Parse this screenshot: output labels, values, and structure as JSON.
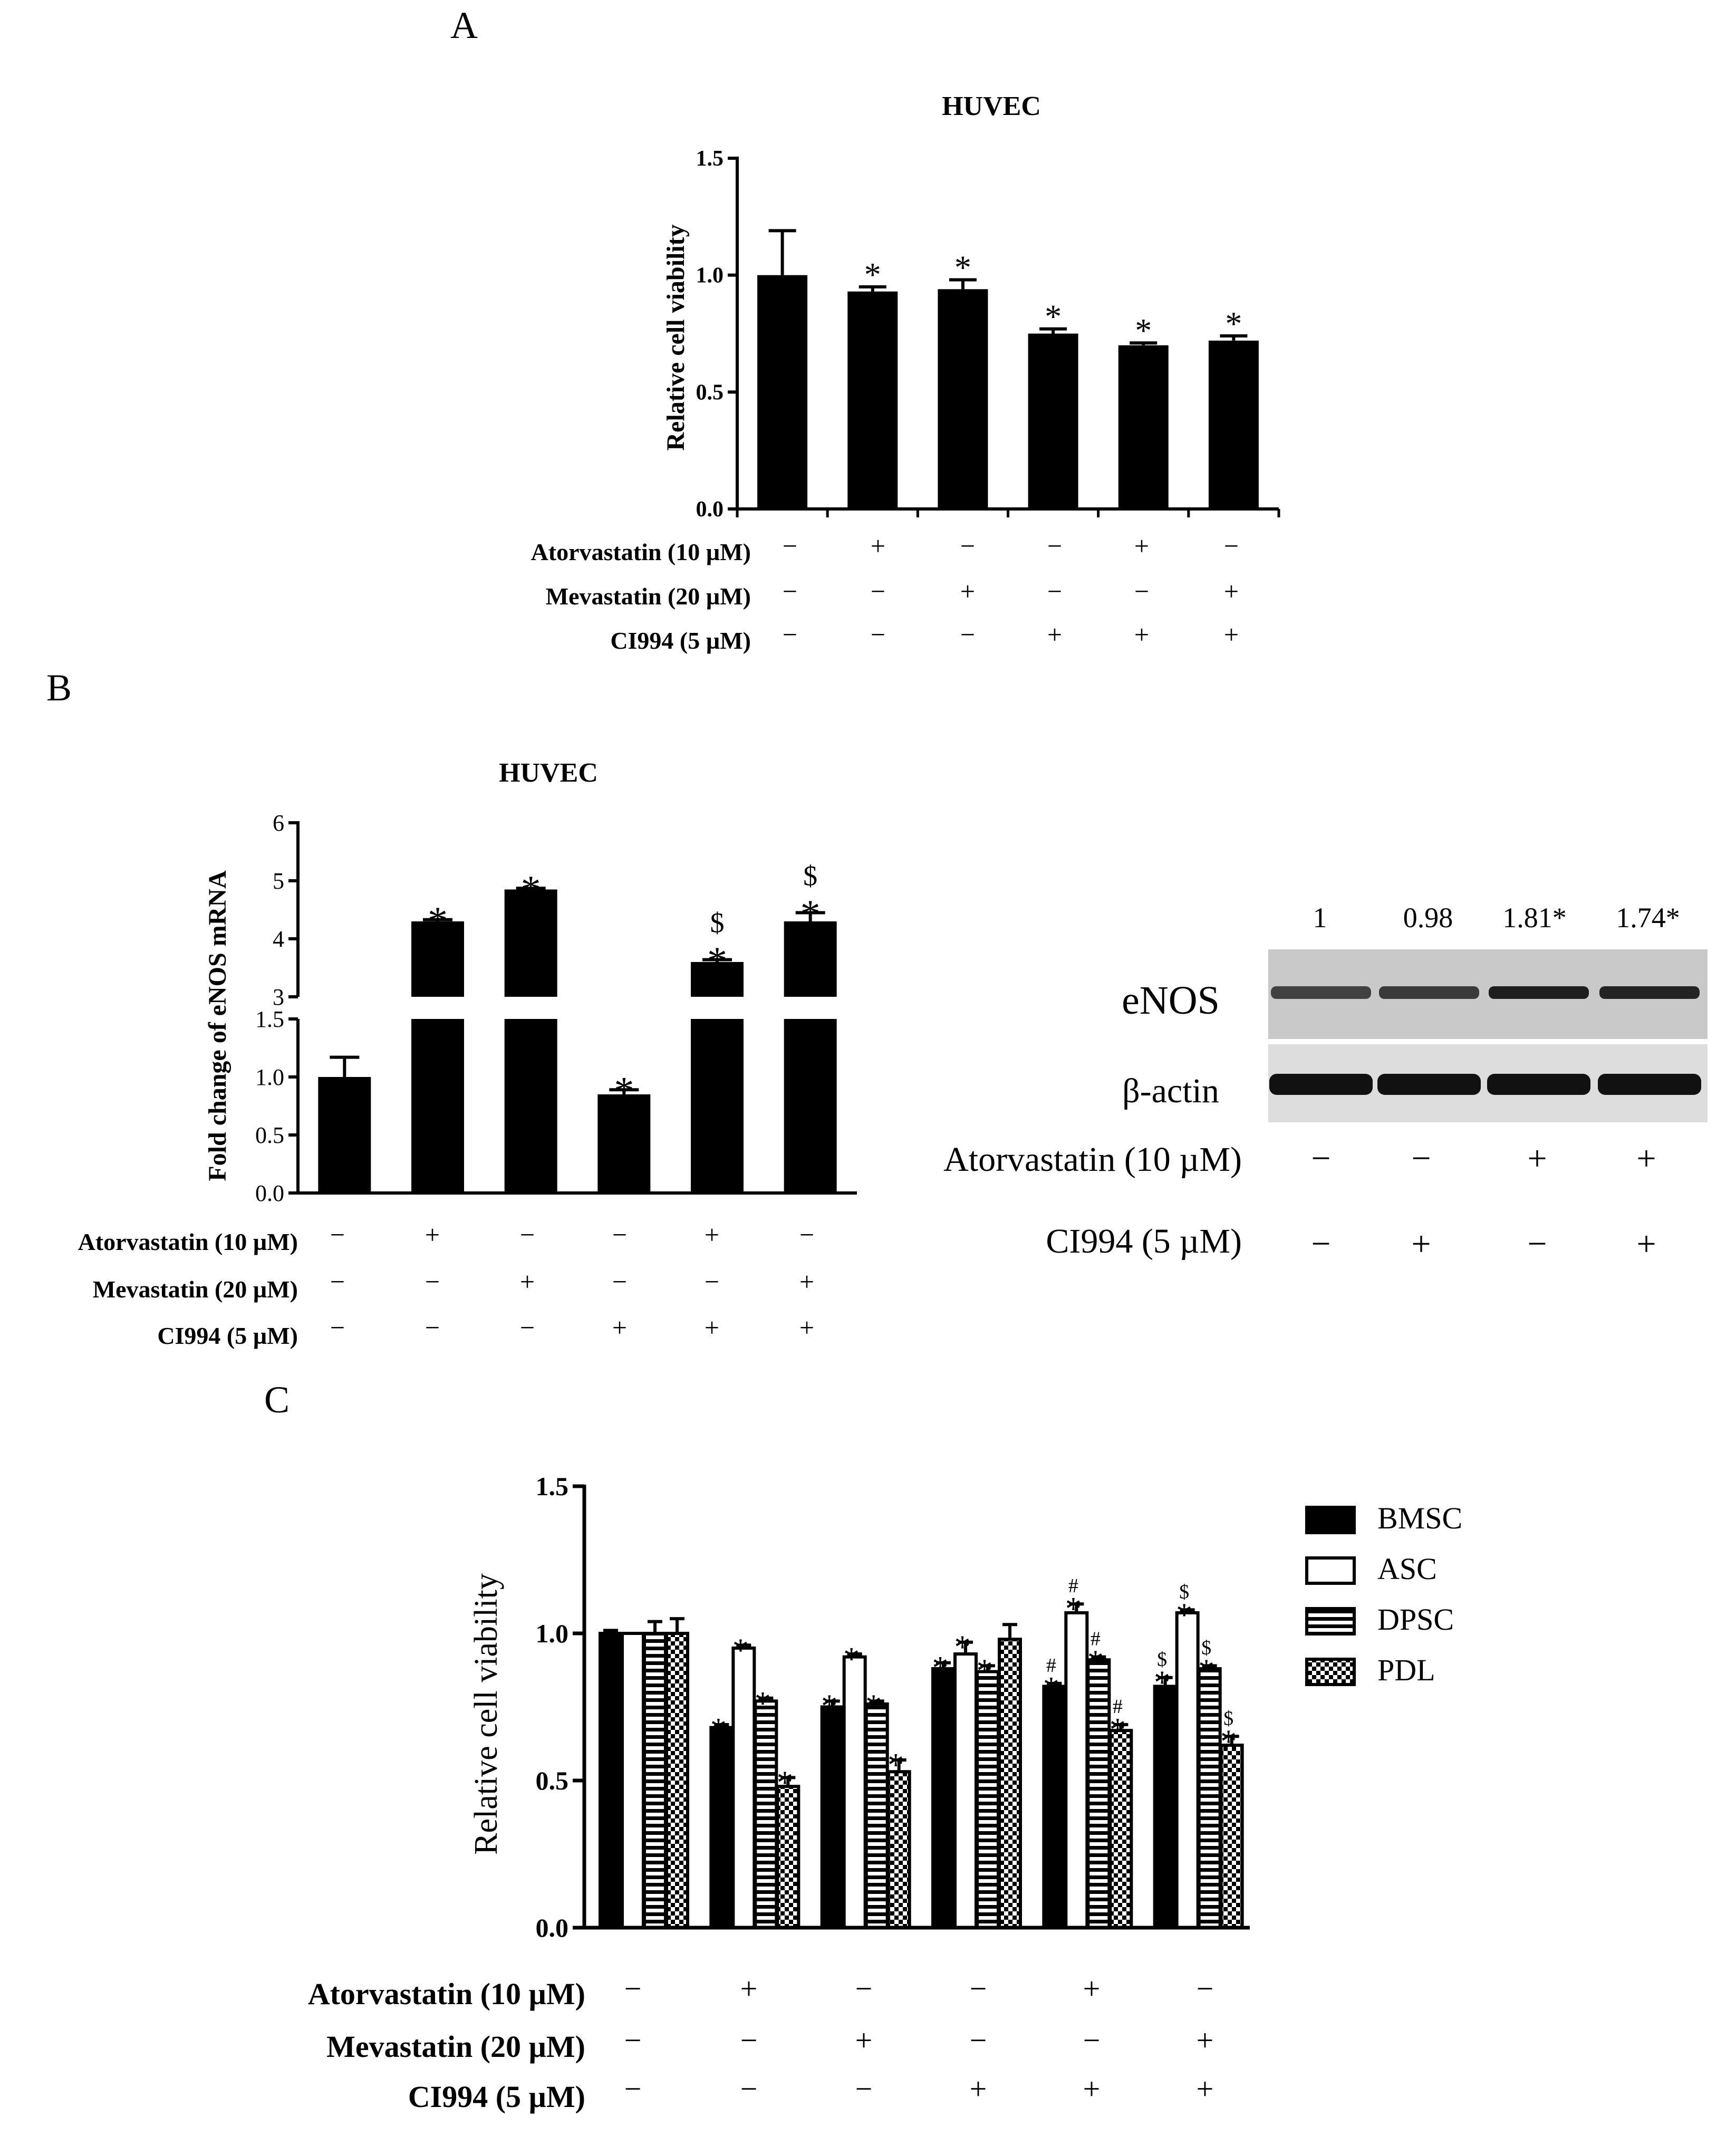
{
  "panels": {
    "A": {
      "letter": "A",
      "title": "HUVEC",
      "ylabel": "Relative cell viability",
      "yticks": [
        "0.0",
        "0.5",
        "1.0",
        "1.5"
      ],
      "treatments": [
        {
          "label": "Atorvastatin (10 µM)",
          "signs": [
            "-",
            "+",
            "-",
            "-",
            "+",
            "-"
          ]
        },
        {
          "label": "Mevastatin (20 µM)",
          "signs": [
            "-",
            "-",
            "+",
            "-",
            "-",
            "+"
          ]
        },
        {
          "label": "CI994 (5 µM)",
          "signs": [
            "-",
            "-",
            "-",
            "+",
            "+",
            "+"
          ]
        }
      ]
    },
    "B": {
      "letter": "B",
      "title": "HUVEC",
      "ylabel": "Fold change of eNOS mRNA",
      "yticks_lower": [
        "0.0",
        "0.5",
        "1.0",
        "1.5"
      ],
      "yticks_upper": [
        "3",
        "4",
        "5",
        "6"
      ],
      "treatments": [
        {
          "label": "Atorvastatin (10 µM)",
          "signs": [
            "-",
            "+",
            "-",
            "-",
            "+",
            "-"
          ]
        },
        {
          "label": "Mevastatin (20 µM)",
          "signs": [
            "-",
            "-",
            "+",
            "-",
            "-",
            "+"
          ]
        },
        {
          "label": "CI994 (5 µM)",
          "signs": [
            "-",
            "-",
            "-",
            "+",
            "+",
            "+"
          ]
        }
      ],
      "blot": {
        "quant": [
          "1",
          "0.98",
          "1.81*",
          "1.74*"
        ],
        "band_labels": [
          "eNOS",
          "β-actin"
        ],
        "treatments": [
          {
            "label": "Atorvastatin (10 µM)",
            "signs": [
              "-",
              "-",
              "+",
              "+"
            ]
          },
          {
            "label": "CI994 (5 µM)",
            "signs": [
              "-",
              "+",
              "-",
              "+"
            ]
          }
        ],
        "band_intensity": {
          "eNOS": [
            0.55,
            0.62,
            0.9,
            0.85
          ],
          "beta_actin": [
            1,
            1,
            1,
            1
          ]
        }
      }
    },
    "C": {
      "letter": "C",
      "ylabel": "Relative cell viability",
      "yticks": [
        "0.0",
        "0.5",
        "1.0",
        "1.5"
      ],
      "legend": [
        "BMSC",
        "ASC",
        "DPSC",
        "PDL"
      ],
      "treatments": [
        {
          "label": "Atorvastatin (10 µM)",
          "signs": [
            "-",
            "+",
            "-",
            "-",
            "+",
            "-"
          ]
        },
        {
          "label": "Mevastatin (20 µM)",
          "signs": [
            "-",
            "-",
            "+",
            "-",
            "-",
            "+"
          ]
        },
        {
          "label": "CI994 (5 µM)",
          "signs": [
            "-",
            "-",
            "-",
            "+",
            "+",
            "+"
          ]
        }
      ]
    }
  },
  "chart_data": [
    {
      "panel": "A",
      "type": "bar",
      "title": "HUVEC",
      "ylabel": "Relative cell viability",
      "ylim": [
        0,
        1.5
      ],
      "values": [
        1.0,
        0.93,
        0.94,
        0.75,
        0.7,
        0.72
      ],
      "errors": [
        0.19,
        0.02,
        0.04,
        0.02,
        0.01,
        0.02
      ],
      "annotations": [
        "",
        "*",
        "*",
        "*",
        "*",
        "*"
      ]
    },
    {
      "panel": "B",
      "type": "bar",
      "title": "HUVEC",
      "ylabel": "Fold change of eNOS mRNA",
      "broken_axis": {
        "lower": [
          0,
          1.5
        ],
        "upper": [
          3,
          6
        ]
      },
      "values": [
        1.0,
        4.3,
        4.85,
        0.85,
        3.6,
        4.3
      ],
      "errors": [
        0.17,
        0.03,
        0.02,
        0.04,
        0.04,
        0.15
      ],
      "annotations": [
        "",
        "*",
        "*",
        "*",
        "$ *",
        "$ *"
      ]
    },
    {
      "panel": "C",
      "type": "bar",
      "ylabel": "Relative cell viability",
      "ylim": [
        0,
        1.5
      ],
      "series": [
        {
          "name": "BMSC",
          "values": [
            1.0,
            0.68,
            0.75,
            0.88,
            0.82,
            0.82
          ],
          "errors": [
            0.01,
            0.01,
            0.02,
            0.02,
            0.01,
            0.03
          ],
          "annotations": [
            "",
            "*",
            "*",
            "*",
            "# *",
            "$ *"
          ]
        },
        {
          "name": "ASC",
          "values": [
            1.0,
            0.95,
            0.92,
            0.93,
            1.07,
            1.07
          ],
          "errors": [
            0.0,
            0.01,
            0.01,
            0.04,
            0.03,
            0.01
          ],
          "annotations": [
            "",
            "*",
            "*",
            "*",
            "# *",
            "$ *"
          ]
        },
        {
          "name": "DPSC",
          "values": [
            1.0,
            0.77,
            0.76,
            0.87,
            0.91,
            0.88
          ],
          "errors": [
            0.04,
            0.01,
            0.01,
            0.02,
            0.01,
            0.01
          ],
          "annotations": [
            "",
            "*",
            "*",
            "*",
            "# *",
            "$ *"
          ]
        },
        {
          "name": "PDL",
          "values": [
            1.0,
            0.48,
            0.53,
            0.98,
            0.67,
            0.62
          ],
          "errors": [
            0.05,
            0.03,
            0.04,
            0.05,
            0.02,
            0.03
          ],
          "annotations": [
            "",
            "*",
            "*",
            "",
            "# *",
            "$ *"
          ]
        }
      ],
      "annotation_offsets": {
        "BMSC": [
          0,
          0,
          0,
          0,
          2,
          2
        ],
        "ASC": [
          0,
          0,
          0,
          0,
          1,
          1
        ],
        "DPSC": [
          0,
          0,
          0,
          0,
          1,
          1
        ],
        "PDL": [
          0,
          0,
          0,
          0,
          1,
          1
        ]
      }
    }
  ]
}
